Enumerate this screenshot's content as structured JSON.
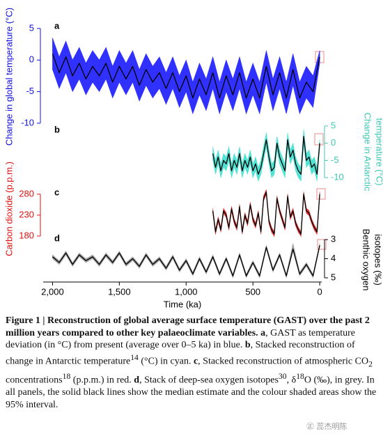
{
  "chart_data": [
    {
      "type": "line",
      "panel": "a",
      "axis_side": "left",
      "axis_color": "#1010e0",
      "y_label": [
        "Change in global temperature (°C)"
      ],
      "color": "#000000",
      "band_color": "#1a1aff",
      "xlim": [
        2070,
        -15
      ],
      "ylim": [
        -11,
        6.2
      ],
      "yticks": [
        5,
        0,
        -5,
        -10
      ],
      "x": [
        2000,
        1950,
        1900,
        1850,
        1800,
        1750,
        1700,
        1650,
        1600,
        1550,
        1500,
        1450,
        1400,
        1350,
        1300,
        1250,
        1200,
        1150,
        1100,
        1050,
        1000,
        950,
        900,
        850,
        800,
        750,
        700,
        650,
        600,
        550,
        500,
        450,
        400,
        350,
        300,
        250,
        200,
        150,
        100,
        50,
        0
      ],
      "values": [
        1,
        -2,
        0.5,
        -2.5,
        -0.5,
        -3,
        -1,
        -2.5,
        -0.5,
        -3.5,
        -1,
        -3,
        -1,
        -4,
        -1.5,
        -3.5,
        -2,
        -4.5,
        -2,
        -5,
        -2.5,
        -6,
        -3,
        -5.5,
        -2,
        -6,
        -2.5,
        -5.5,
        -2,
        -6,
        -3,
        -6,
        -1,
        -5.5,
        -2,
        -6,
        -1.5,
        -6,
        -3.5,
        -5,
        0.5
      ],
      "upper": [
        3.5,
        0.5,
        3,
        0,
        2,
        -0.5,
        1.5,
        0,
        2,
        -1,
        1.5,
        -0.5,
        1.5,
        -1.5,
        1,
        -1,
        0.5,
        -2,
        0.5,
        -2.5,
        0,
        -3.5,
        -0.5,
        -3,
        0.5,
        -3.5,
        0,
        -3,
        0.5,
        -3.5,
        -0.5,
        -3.5,
        1.5,
        -3,
        0.5,
        -3.5,
        1,
        -3.5,
        -1,
        -2.5,
        1.5
      ],
      "lower": [
        -1.5,
        -4.5,
        -2,
        -5,
        -3,
        -5.5,
        -3.5,
        -5,
        -3,
        -6,
        -3.5,
        -5.5,
        -3.5,
        -6.5,
        -4,
        -6,
        -4.5,
        -7,
        -4.5,
        -7.5,
        -5,
        -8.5,
        -5.5,
        -8,
        -4.5,
        -8.5,
        -5,
        -8,
        -4.5,
        -8.5,
        -5.5,
        -8.5,
        -3.5,
        -8,
        -4.5,
        -8.5,
        -4,
        -8.5,
        -6,
        -7.5,
        -0.5
      ]
    },
    {
      "type": "line",
      "panel": "b",
      "axis_side": "right",
      "axis_color": "#3cc8b4",
      "y_label": [
        "Change in Antarctic",
        "temperature (°C)"
      ],
      "color": "#000000",
      "band_color": "#40e0d0",
      "xlim": [
        2070,
        -15
      ],
      "ylim": [
        -13,
        6.2
      ],
      "yticks": [
        5,
        0,
        -5,
        -10
      ],
      "x": [
        800,
        780,
        760,
        740,
        720,
        700,
        680,
        660,
        640,
        620,
        600,
        580,
        560,
        540,
        520,
        500,
        480,
        460,
        440,
        420,
        400,
        380,
        360,
        340,
        320,
        300,
        280,
        260,
        240,
        220,
        200,
        180,
        160,
        140,
        120,
        100,
        80,
        60,
        40,
        20,
        0
      ],
      "values": [
        -3,
        -7,
        -4,
        -8,
        -5,
        -6,
        -3,
        -8,
        -5,
        -7,
        -3,
        -8,
        -5,
        -7,
        -4,
        -8,
        -6,
        -9,
        -7,
        -3,
        1,
        -4,
        -8,
        -7,
        0,
        -4,
        -6,
        -8,
        1,
        -4,
        -2,
        -6,
        -8,
        -9,
        2,
        -5,
        -4,
        -7,
        -6,
        -9,
        0
      ],
      "upper": [
        -1,
        -5,
        -2,
        -6,
        -3,
        -4,
        -1,
        -6,
        -3,
        -5,
        -1,
        -6,
        -3,
        -5,
        -2,
        -6,
        -4,
        -7,
        -5,
        -1,
        3,
        -2,
        -6,
        -5,
        2,
        -2,
        -4,
        -6,
        3,
        -2,
        0,
        -4,
        -6,
        -7,
        4,
        -3,
        -2,
        -5,
        -4,
        -7,
        1
      ],
      "lower": [
        -5,
        -9,
        -6,
        -10,
        -7,
        -8,
        -5,
        -10,
        -7,
        -9,
        -5,
        -10,
        -7,
        -9,
        -6,
        -10,
        -8,
        -11,
        -9,
        -5,
        -1,
        -6,
        -10,
        -9,
        -2,
        -6,
        -8,
        -10,
        -1,
        -6,
        -4,
        -8,
        -10,
        -11,
        0,
        -7,
        -6,
        -9,
        -8,
        -11,
        -1
      ]
    },
    {
      "type": "line",
      "panel": "c",
      "axis_side": "left",
      "axis_color": "#e01010",
      "y_label": [
        "Carbon dioxide (p.p.m.)"
      ],
      "color": "#000000",
      "band_color": "#e02020",
      "xlim": [
        2070,
        -15
      ],
      "ylim": [
        170,
        303
      ],
      "yticks": [
        280,
        230,
        180
      ],
      "x": [
        800,
        780,
        760,
        740,
        720,
        700,
        680,
        660,
        640,
        620,
        600,
        580,
        560,
        540,
        520,
        500,
        480,
        460,
        440,
        420,
        400,
        380,
        360,
        340,
        320,
        300,
        280,
        260,
        240,
        220,
        200,
        180,
        160,
        140,
        120,
        100,
        80,
        60,
        40,
        20,
        0
      ],
      "values": [
        240,
        190,
        220,
        195,
        240,
        230,
        200,
        245,
        215,
        200,
        250,
        190,
        230,
        210,
        255,
        220,
        205,
        235,
        190,
        270,
        285,
        215,
        195,
        185,
        270,
        240,
        220,
        200,
        275,
        225,
        240,
        210,
        195,
        185,
        280,
        240,
        235,
        215,
        200,
        190,
        280
      ],
      "upper": [
        246,
        196,
        226,
        201,
        246,
        236,
        206,
        251,
        221,
        206,
        256,
        196,
        236,
        216,
        261,
        226,
        211,
        241,
        196,
        276,
        291,
        221,
        201,
        191,
        276,
        246,
        226,
        206,
        281,
        231,
        246,
        216,
        201,
        191,
        286,
        246,
        241,
        221,
        206,
        196,
        286
      ],
      "lower": [
        234,
        184,
        214,
        189,
        234,
        224,
        194,
        239,
        209,
        194,
        244,
        184,
        224,
        204,
        249,
        214,
        199,
        229,
        184,
        264,
        279,
        209,
        189,
        179,
        264,
        234,
        214,
        194,
        269,
        219,
        234,
        204,
        189,
        179,
        274,
        234,
        229,
        209,
        194,
        184,
        274
      ]
    },
    {
      "type": "line",
      "panel": "d",
      "axis_side": "right",
      "axis_color": "#000000",
      "y_label": [
        "Benthic oxygen",
        "isotopes (‰)"
      ],
      "color": "#000000",
      "band_color": "#9a9a9a",
      "xlim": [
        2070,
        -15
      ],
      "ylim": [
        5.22,
        2.67
      ],
      "yticks": [
        3,
        4,
        5
      ],
      "x_label": "Time (ka)",
      "xticks": [
        {
          "value": 2000,
          "label": "2,000"
        },
        {
          "value": 1500,
          "label": "1,500"
        },
        {
          "value": 1000,
          "label": "1,000"
        },
        500,
        0
      ],
      "x": [
        2000,
        1950,
        1900,
        1850,
        1800,
        1750,
        1700,
        1650,
        1600,
        1550,
        1500,
        1450,
        1400,
        1350,
        1300,
        1250,
        1200,
        1150,
        1100,
        1050,
        1000,
        950,
        900,
        850,
        800,
        750,
        700,
        650,
        600,
        550,
        500,
        450,
        400,
        350,
        300,
        250,
        200,
        150,
        100,
        50,
        0
      ],
      "values": [
        3.9,
        4.2,
        3.7,
        4.3,
        3.8,
        4.1,
        3.9,
        4.3,
        3.8,
        4.2,
        3.7,
        4.3,
        4.0,
        4.4,
        3.8,
        4.3,
        4.0,
        4.5,
        3.9,
        4.6,
        4.1,
        4.8,
        4.0,
        4.7,
        3.9,
        4.8,
        4.0,
        4.9,
        3.8,
        4.9,
        4.2,
        4.9,
        3.4,
        4.6,
        3.8,
        4.9,
        3.5,
        4.8,
        4.3,
        4.9,
        3.3
      ],
      "upper": [
        4.0,
        4.3,
        3.8,
        4.4,
        3.9,
        4.2,
        4.0,
        4.4,
        3.9,
        4.3,
        3.8,
        4.4,
        4.1,
        4.5,
        3.9,
        4.4,
        4.1,
        4.6,
        4.0,
        4.7,
        4.2,
        4.9,
        4.1,
        4.8,
        4.0,
        4.9,
        4.1,
        5.0,
        3.9,
        5.0,
        4.3,
        5.0,
        3.5,
        4.7,
        3.9,
        5.0,
        3.6,
        4.9,
        4.4,
        5.0,
        3.4
      ],
      "lower": [
        3.8,
        4.1,
        3.6,
        4.2,
        3.7,
        4.0,
        3.8,
        4.2,
        3.7,
        4.1,
        3.6,
        4.2,
        3.9,
        4.3,
        3.7,
        4.2,
        3.9,
        4.4,
        3.8,
        4.5,
        4.0,
        4.7,
        3.9,
        4.6,
        3.8,
        4.7,
        3.9,
        4.8,
        3.7,
        4.8,
        4.1,
        4.8,
        3.3,
        4.5,
        3.7,
        4.8,
        3.2,
        4.7,
        4.2,
        4.8,
        3.2
      ]
    }
  ],
  "caption": {
    "runs": [
      "Figure 1 | Reconstruction of global average surface temperature (GAST) over the past 2 million years compared to other key palaeoclimate variables.",
      "a",
      ", GAST as temperature deviation (in °C) from present (average over 0–5 ka) in blue. ",
      "b",
      ", Stacked reconstruction of change in Antarctic temperature",
      "14",
      " (°C) in cyan. ",
      "c",
      ", Stacked reconstruction of atmospheric CO",
      "2",
      " concentrations",
      "18",
      " (p.p.m.) in red. ",
      "d",
      ", Stack of deep-sea oxygen isotopes",
      "30",
      ", δ",
      "18",
      "O (‰), in grey. In all panels, the solid black lines show the median estimate and the colour shaded areas show the 95% interval."
    ]
  },
  "watermark": "㊣ 蕊杰明陈"
}
